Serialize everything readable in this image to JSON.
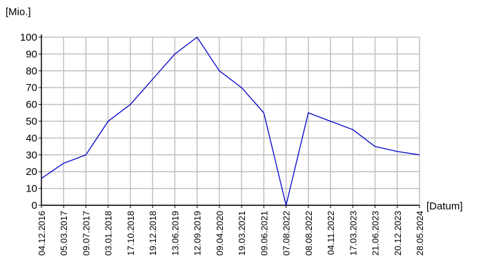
{
  "chart_data": {
    "type": "line",
    "y_label": "[Mio.]",
    "x_label": "[Datum]",
    "categories": [
      "04.12.2016",
      "05.03.2017",
      "09.07.2017",
      "03.01.2018",
      "17.10.2018",
      "19.12.2018",
      "13.06.2019",
      "12.09.2019",
      "09.04.2020",
      "19.03.2021",
      "09.06.2021",
      "07.08.2022",
      "08.08.2022",
      "04.11.2022",
      "17.03.2023",
      "21.06.2023",
      "20.12.2023",
      "28.05.2024"
    ],
    "values": [
      16,
      25,
      30,
      50,
      60,
      75,
      90,
      100,
      80,
      70,
      55,
      0,
      55,
      50,
      45,
      35,
      32,
      30
    ],
    "color": "#0000cc",
    "ylim": [
      0,
      100
    ],
    "yticks": [
      0,
      10,
      20,
      30,
      40,
      50,
      60,
      70,
      80,
      90,
      100
    ],
    "grid": true
  }
}
